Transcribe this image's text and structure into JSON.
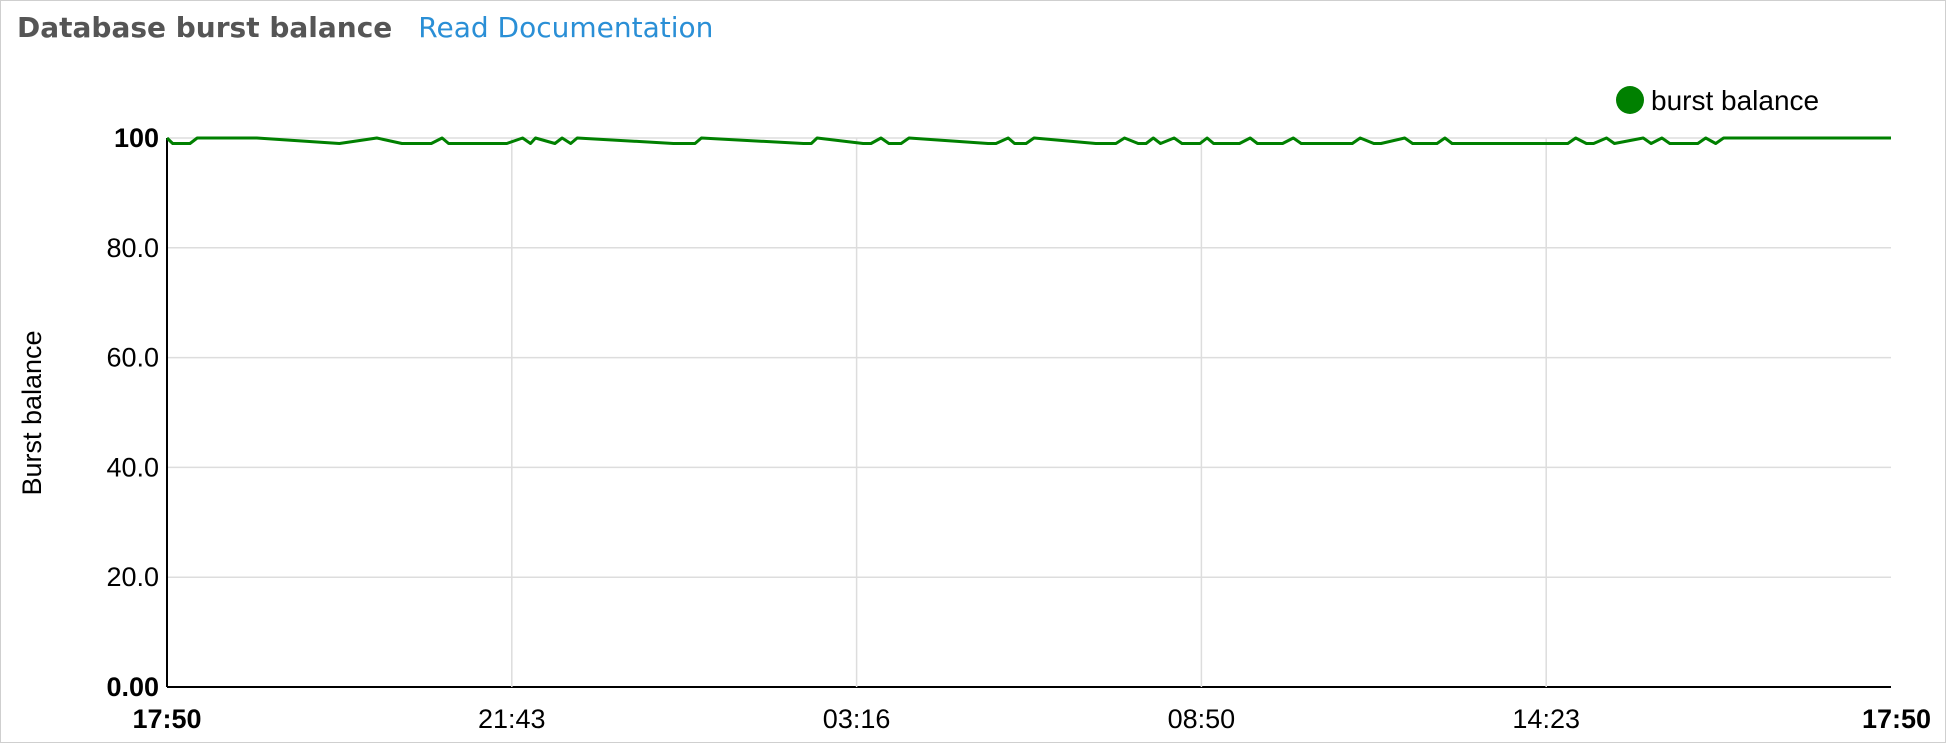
{
  "header": {
    "title": "Database burst balance",
    "doc_link": "Read Documentation"
  },
  "chart_data": {
    "type": "line",
    "ylabel": "Burst balance",
    "ylim": [
      0,
      100
    ],
    "y_ticks": [
      "0.00",
      "20.0",
      "40.0",
      "60.0",
      "80.0",
      "100"
    ],
    "x_ticks": [
      "17:50",
      "21:43",
      "03:16",
      "08:50",
      "14:23",
      "17:50"
    ],
    "x_domain_hours": [
      0,
      24
    ],
    "grid": true,
    "legend_position": "top-right",
    "series": [
      {
        "name": "burst balance",
        "color": "#008000",
        "x": [
          0,
          0.08,
          0.17,
          0.32,
          0.42,
          0.5,
          1.25,
          2.4,
          2.92,
          3.27,
          3.68,
          3.83,
          3.92,
          4.6,
          4.73,
          4.95,
          5.06,
          5.13,
          5.4,
          5.5,
          5.62,
          5.71,
          7.05,
          7.15,
          7.35,
          7.44,
          8.86,
          8.97,
          9.05,
          9.69,
          9.8,
          9.94,
          10.05,
          10.22,
          10.33,
          11.43,
          11.54,
          11.71,
          11.8,
          11.96,
          12.07,
          12.93,
          13.04,
          13.21,
          13.33,
          13.52,
          13.63,
          13.73,
          13.83,
          14.02,
          14.13,
          14.38,
          14.48,
          14.57,
          14.82,
          14.93,
          15.08,
          15.18,
          15.43,
          15.53,
          15.68,
          15.79,
          16.5,
          16.61,
          16.8,
          16.9,
          17.23,
          17.34,
          17.57,
          17.68,
          17.79,
          17.89,
          19.5,
          19.61,
          19.76,
          19.86,
          20.04,
          20.15,
          20.55,
          20.66,
          20.81,
          20.92,
          21.31,
          21.42,
          21.56,
          21.67,
          24
        ],
        "values": [
          100,
          99,
          99,
          99,
          100,
          100,
          100,
          99,
          100,
          99,
          99,
          100,
          99,
          99,
          99,
          100,
          99,
          100,
          99,
          100,
          99,
          100,
          99,
          99,
          99,
          100,
          99,
          99,
          100,
          99,
          99,
          100,
          99,
          99,
          100,
          99,
          99,
          100,
          99,
          99,
          100,
          99,
          99,
          99,
          100,
          99,
          99,
          100,
          99,
          100,
          99,
          99,
          100,
          99,
          99,
          99,
          100,
          99,
          99,
          99,
          100,
          99,
          99,
          100,
          99,
          99,
          100,
          99,
          99,
          99,
          100,
          99,
          99,
          100,
          99,
          99,
          100,
          99,
          100,
          99,
          100,
          99,
          99,
          100,
          99,
          100,
          100
        ]
      }
    ]
  }
}
